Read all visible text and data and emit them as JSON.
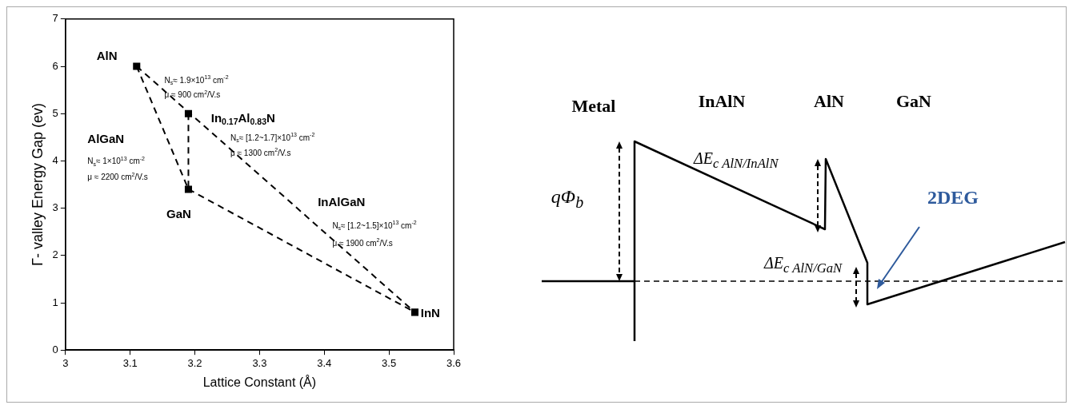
{
  "chart_data": [
    {
      "type": "scatter",
      "xlabel": "Lattice Constant (Å)",
      "ylabel": "Γ- valley Energy Gap (ev)",
      "xlim": [
        3,
        3.6
      ],
      "xticks": [
        3,
        3.1,
        3.2,
        3.3,
        3.4,
        3.5,
        3.6
      ],
      "ylim": [
        0,
        7
      ],
      "yticks": [
        0,
        1,
        2,
        3,
        4,
        5,
        6,
        7
      ],
      "grid": false,
      "legend": false,
      "series": [
        {
          "type": "line",
          "x": [
            3.11,
            3.54
          ],
          "values": [
            6,
            0.8
          ],
          "color": "#000000",
          "line_style": "dashed",
          "marker": "none"
        },
        {
          "type": "line",
          "x": [
            3.11,
            3.19
          ],
          "values": [
            6,
            3.4
          ],
          "color": "#000000",
          "line_style": "dashed",
          "marker": "none"
        },
        {
          "type": "line",
          "x": [
            3.19,
            3.19
          ],
          "values": [
            5,
            3.4
          ],
          "color": "#000000",
          "line_style": "dashed",
          "marker": "none"
        },
        {
          "type": "line",
          "x": [
            3.19,
            3.54
          ],
          "values": [
            3.4,
            0.8
          ],
          "color": "#000000",
          "line_style": "dashed",
          "marker": "none"
        },
        {
          "type": "scatter",
          "x": [
            3.11,
            3.19,
            3.19,
            3.54
          ],
          "values": [
            6,
            5,
            3.4,
            0.8
          ],
          "color": "#000000",
          "marker": "square"
        }
      ],
      "annotations": [
        "AlN",
        "In$_{0.17}$Al$_{0.83}$N",
        "AlGaN",
        "GaN",
        "InAlGaN",
        "InN",
        "N$_{s}$≈ 1.9×10$^{13}$ cm$^{-2}$",
        "μ ≈ 900 cm$^{2}$/V.s",
        "N$_{s}$≈ [1.2~1.7]×10$^{13}$ cm$^{-2}$",
        "μ ≈ 1300 cm$^{2}$/V.s",
        "N$_{s}$≈ 1×10$^{13}$ cm$^{-2}$",
        "μ ≈ 2200 cm$^{2}$/V.s",
        "N$_{s}$≈ [1.2~1.5]×10$^{13}$ cm$^{-2}$",
        "μ ≈ 1900 cm$^{2}$/V.s"
      ]
    },
    {
      "type": "other",
      "annotations": [
        "Metal",
        "InAlN",
        "AlN",
        "GaN",
        "qΦ$_{b}$",
        "ΔE$_{c AlN/InAlN}$",
        "ΔE$_{c AlN/GaN}$",
        "2DEG"
      ]
    }
  ]
}
